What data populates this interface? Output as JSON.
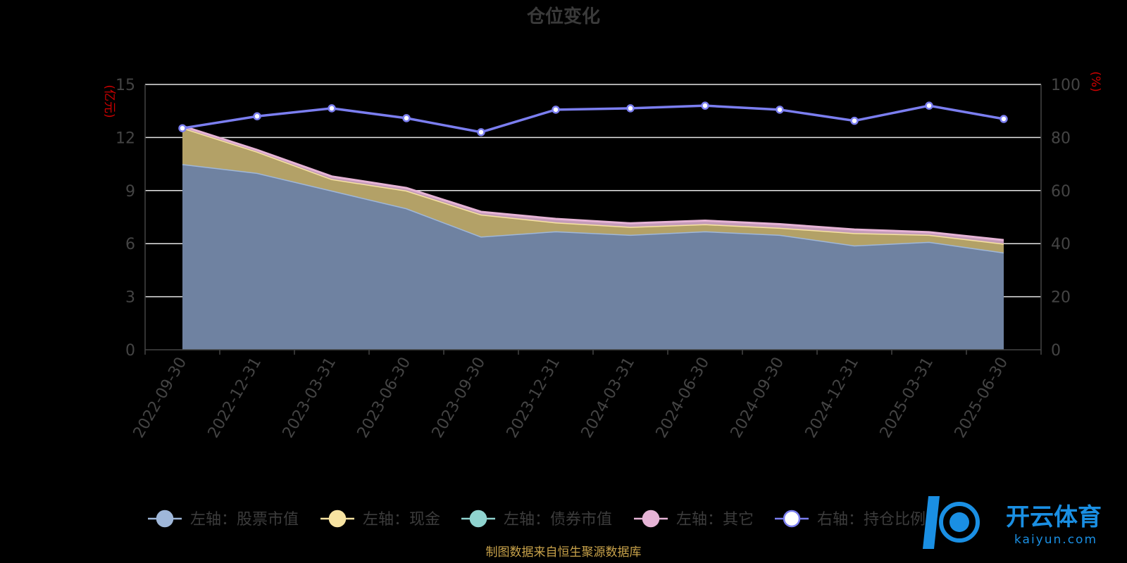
{
  "chart_data": {
    "type": "area",
    "title": "仓位变化",
    "left_unit": "(亿元)",
    "right_unit": "(%)",
    "x": [
      "2022-09-30",
      "2022-12-31",
      "2023-03-31",
      "2023-06-30",
      "2023-09-30",
      "2023-12-31",
      "2024-03-31",
      "2024-06-30",
      "2024-09-30",
      "2024-12-31",
      "2025-03-31",
      "2025-06-30"
    ],
    "left_ylim": [
      0,
      15
    ],
    "left_ticks": [
      0,
      3,
      6,
      9,
      12,
      15
    ],
    "right_ylim": [
      0,
      100
    ],
    "right_ticks": [
      0,
      20,
      40,
      60,
      80,
      100
    ],
    "stacked_series": [
      {
        "name": "左轴：股票市值",
        "color": "#9fb7d9",
        "values": [
          10.5,
          10.0,
          9.0,
          8.0,
          6.4,
          6.7,
          6.5,
          6.7,
          6.5,
          5.9,
          6.1,
          5.5
        ]
      },
      {
        "name": "左轴：现金",
        "color": "#f7e3a1",
        "values": [
          2.05,
          1.2,
          0.65,
          1.0,
          1.25,
          0.5,
          0.45,
          0.4,
          0.4,
          0.7,
          0.4,
          0.5
        ]
      },
      {
        "name": "左轴：债券市值",
        "color": "#8fd3cf",
        "values": [
          0,
          0,
          0,
          0,
          0,
          0,
          0,
          0,
          0,
          0,
          0,
          0
        ]
      },
      {
        "name": "左轴：其它",
        "color": "#e6b4d6",
        "values": [
          0.1,
          0.1,
          0.15,
          0.15,
          0.15,
          0.2,
          0.2,
          0.2,
          0.2,
          0.2,
          0.15,
          0.2
        ]
      }
    ],
    "line_series": {
      "name": "右轴：持仓比例",
      "color": "#7b7ef0",
      "values": [
        83.5,
        88.0,
        91.0,
        87.3,
        82.0,
        90.5,
        91.0,
        92.0,
        90.5,
        86.3,
        92.0,
        87.0
      ]
    },
    "legend_position": "bottom",
    "grid": true
  },
  "footer": {
    "source": "制图数据来自恒生聚源数据库"
  },
  "watermark": {
    "name": "开云体育",
    "domain": "kaiyun.com"
  }
}
